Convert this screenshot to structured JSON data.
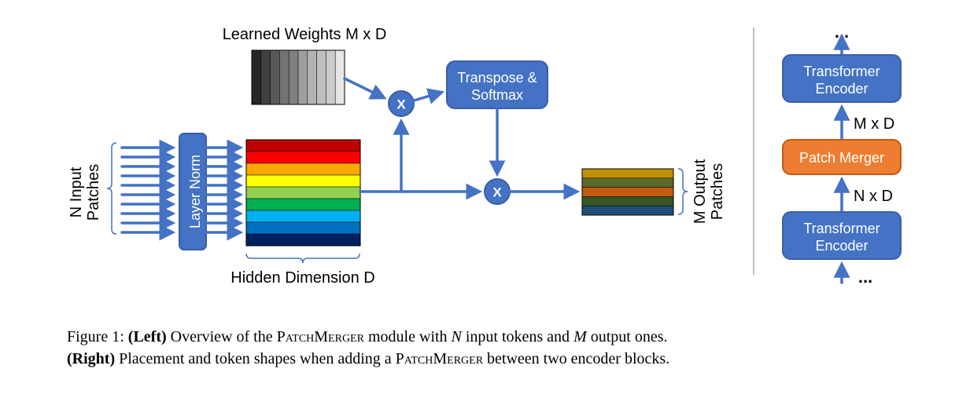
{
  "diagram": {
    "colors": {
      "primary": "#4472c4",
      "primary_stroke": "#3a5fa6",
      "accent": "#ed7d31",
      "accent_stroke": "#c55a11",
      "white_text": "#ffffff",
      "text": "#000000",
      "divider": "#7f7f7f",
      "background": "#ffffff"
    },
    "left": {
      "input_label_1": "N Input",
      "input_label_2": "Patches",
      "layer_norm": "Layer Norm",
      "weights_label": "Learned Weights M x D",
      "hidden_label": "Hidden Dimension D",
      "transpose_softmax_1": "Transpose &",
      "transpose_softmax_2": "Softmax",
      "op": "X",
      "output_label_1": "M Output",
      "output_label_2": "Patches",
      "weights_colors": [
        "#262626",
        "#404040",
        "#595959",
        "#737373",
        "#808080",
        "#9e9e9e",
        "#b3b3b3",
        "#bfbfbf",
        "#cccccc",
        "#e6e6e6"
      ],
      "rainbow_colors": [
        "#c00000",
        "#fe0000",
        "#ffa800",
        "#ffff00",
        "#92d050",
        "#00b050",
        "#00b0f0",
        "#0070c0",
        "#002060"
      ],
      "output_colors": [
        "#bf9000",
        "#596a2b",
        "#c55a11",
        "#385723",
        "#1f4e79"
      ]
    },
    "right": {
      "encoder_top": "Transformer",
      "encoder_top_2": "Encoder",
      "merger": "Patch Merger",
      "encoder_bottom": "Transformer",
      "encoder_bottom_2": "Encoder",
      "dim_top": "M x D",
      "dim_bottom": "N x D",
      "ellipsis_top": "...",
      "ellipsis_bottom": "..."
    }
  },
  "caption": {
    "prefix": "Figure 1: ",
    "left_tag": "(Left)",
    "left_text": " Overview of the ",
    "module_name": "PatchMerger",
    "left_suffix": " module with ",
    "n": "N",
    "left_mid": " input tokens and ",
    "m": "M",
    "left_end": " output ones.",
    "right_tag": "(Right)",
    "right_text": " Placement and token shapes when adding a ",
    "right_end": " between two encoder blocks."
  }
}
